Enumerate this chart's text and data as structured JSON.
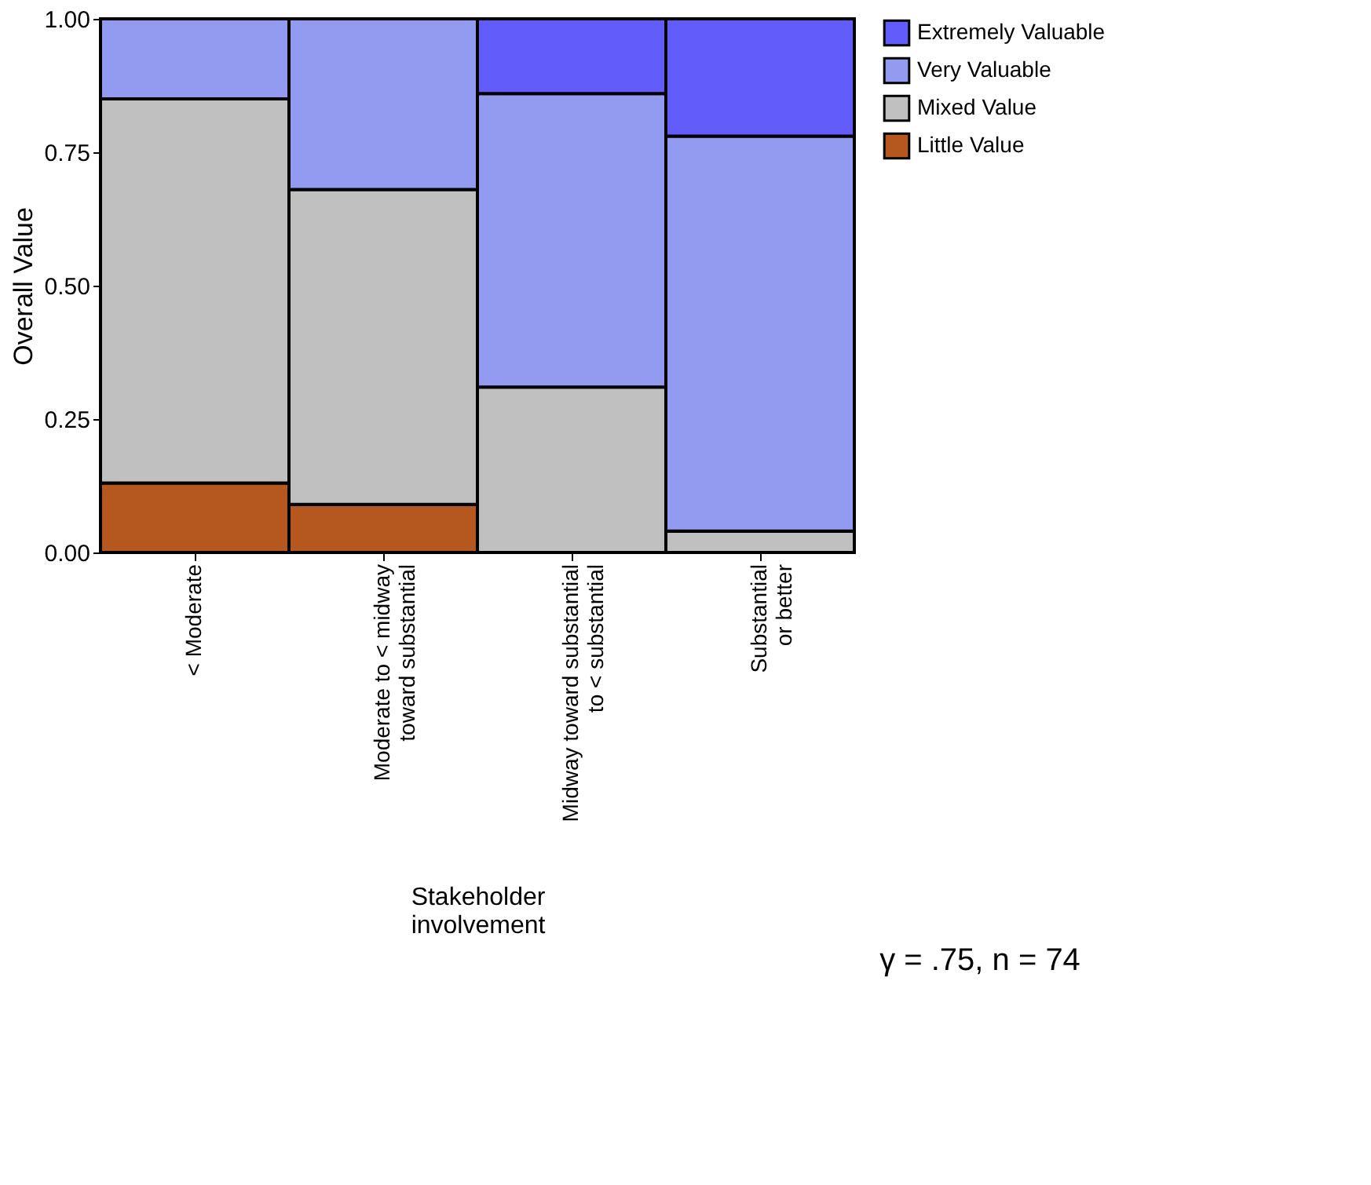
{
  "chart_data": {
    "type": "bar",
    "stacked": true,
    "xlabel": "Stakeholder\ninvolvement",
    "ylabel": "Overall Value",
    "categories": [
      "< Moderate",
      "Moderate to < midway\ntoward substantial",
      "Midway toward substantial\nto < substantial",
      "Substantial\nor better"
    ],
    "series": [
      {
        "name": "Little Value",
        "color": "#b5581f",
        "values": [
          0.13,
          0.09,
          null,
          null
        ]
      },
      {
        "name": "Mixed Value",
        "color": "#c0c0c0",
        "values": [
          0.72,
          0.59,
          0.31,
          0.04
        ]
      },
      {
        "name": "Very Valuable",
        "color": "#929bef",
        "values": [
          0.15,
          0.32,
          0.55,
          0.74
        ]
      },
      {
        "name": "Extremely Valuable",
        "color": "#625cfb",
        "values": [
          null,
          null,
          0.14,
          0.22
        ]
      }
    ],
    "ylim": [
      0,
      1
    ],
    "yticks": [
      {
        "value": 0,
        "label": "0.00"
      },
      {
        "value": 0.25,
        "label": "0.25"
      },
      {
        "value": 0.5,
        "label": "0.50"
      },
      {
        "value": 0.75,
        "label": "0.75"
      },
      {
        "value": 1,
        "label": "1.00"
      }
    ],
    "legend": "right",
    "annotations": [
      "γ = .75, n = 74"
    ]
  }
}
